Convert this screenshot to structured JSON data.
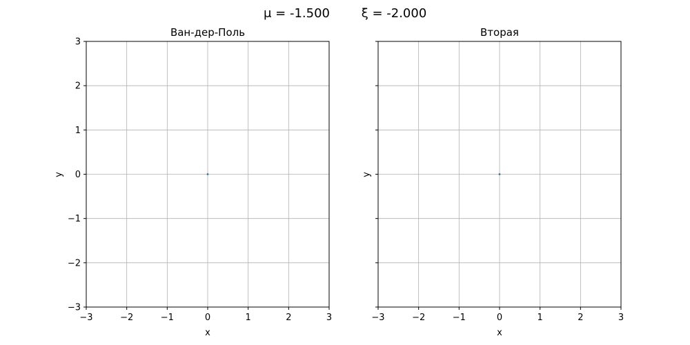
{
  "figure": {
    "suptitle_mu": "μ = -1.500",
    "suptitle_xi": "ξ = -2.000"
  },
  "chart_data": [
    {
      "type": "scatter",
      "title": "Ван-дер-Поль",
      "xlabel": "x",
      "ylabel": "y",
      "xlim": [
        -3,
        3
      ],
      "ylim": [
        -3,
        3
      ],
      "xticks": [
        -3,
        -2,
        -1,
        0,
        1,
        2,
        3
      ],
      "yticks": [
        -3,
        -2,
        -1,
        0,
        1,
        2,
        3
      ],
      "xtick_labels": [
        "−3",
        "−2",
        "−1",
        "0",
        "1",
        "2",
        "3"
      ],
      "ytick_labels": [
        "−3",
        "−2",
        "−1",
        "0",
        "1",
        "2",
        "3"
      ],
      "show_ytick_labels": true,
      "grid": true,
      "points": [
        {
          "x": 0,
          "y": 0
        }
      ],
      "color": "#1f77b4"
    },
    {
      "type": "scatter",
      "title": "Вторая",
      "xlabel": "x",
      "ylabel": "y",
      "xlim": [
        -3,
        3
      ],
      "ylim": [
        -3,
        3
      ],
      "xticks": [
        -3,
        -2,
        -1,
        0,
        1,
        2,
        3
      ],
      "yticks": [
        -3,
        -2,
        -1,
        0,
        1,
        2,
        3
      ],
      "xtick_labels": [
        "−3",
        "−2",
        "−1",
        "0",
        "1",
        "2",
        "3"
      ],
      "ytick_labels": [
        "",
        "",
        "",
        "",
        "",
        "",
        ""
      ],
      "show_ytick_labels": false,
      "grid": true,
      "points": [
        {
          "x": 0,
          "y": 0
        }
      ],
      "color": "#1f77b4"
    }
  ]
}
